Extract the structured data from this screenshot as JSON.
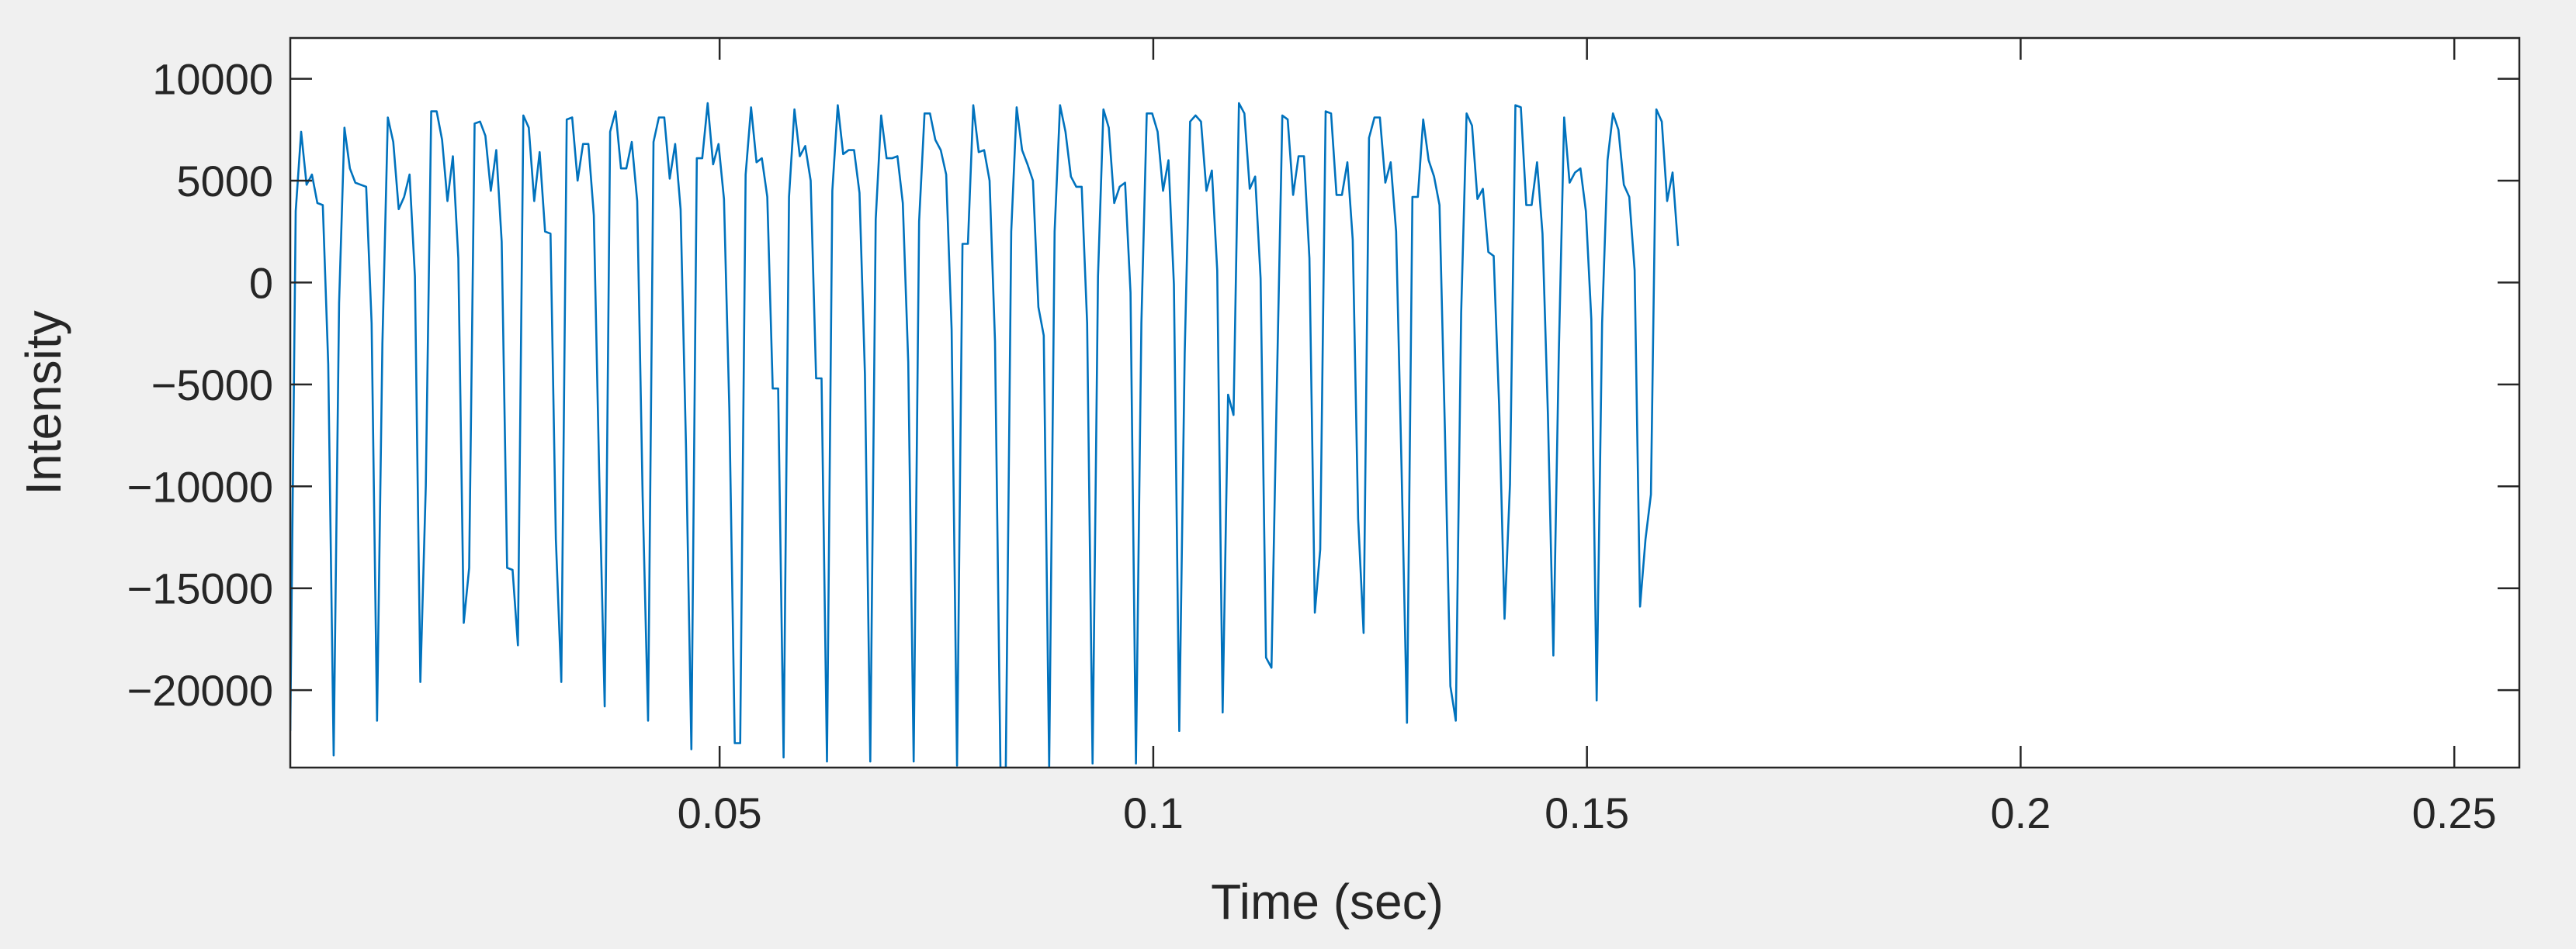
{
  "chart_data": {
    "type": "line",
    "title": "",
    "xlabel": "Time (sec)",
    "ylabel": "Intensity",
    "xlim": [
      0.0005,
      0.2575
    ],
    "ylim": [
      -23800,
      12000
    ],
    "xticks": [
      0.05,
      0.1,
      0.15,
      0.2,
      0.25
    ],
    "xtick_labels": [
      "0.05",
      "0.1",
      "0.15",
      "0.2",
      "0.25"
    ],
    "yticks": [
      -20000,
      -15000,
      -10000,
      -5000,
      0,
      5000,
      10000
    ],
    "ytick_labels": [
      "−20000",
      "−15000",
      "−10000",
      "−5000",
      "0",
      "5000",
      "10000"
    ],
    "grid": false,
    "line_color": "#0072bd",
    "sample_interval": 0.000625,
    "series": [
      {
        "x0": 0.0005,
        "dx": 0.000625,
        "values": [
          -22000,
          3500,
          7400,
          4800,
          5300,
          3900,
          3800,
          -4000,
          -23200,
          -1000,
          7600,
          5600,
          4900,
          4800,
          4700,
          -2000,
          -21500,
          -3000,
          8100,
          6900,
          3600,
          4200,
          5300,
          300,
          -19600,
          -10000,
          8400,
          8400,
          7000,
          4000,
          6200,
          1200,
          -16700,
          -14000,
          7800,
          7900,
          7200,
          4500,
          6500,
          2000,
          -14000,
          -14100,
          -17800,
          8200,
          7600,
          4000,
          6400,
          2500,
          2400,
          -12600,
          -19600,
          8000,
          8100,
          5000,
          6800,
          6800,
          3300,
          -9500,
          -20800,
          7400,
          8400,
          5600,
          5600,
          6900,
          4000,
          -10500,
          -21500,
          6900,
          8100,
          8100,
          5100,
          6800,
          3600,
          -8100,
          -22900,
          6100,
          6100,
          8800,
          5800,
          6800,
          4100,
          -6200,
          -22600,
          -22600,
          5300,
          8600,
          5900,
          6100,
          4200,
          -5200,
          -5200,
          -23300,
          4200,
          8500,
          6200,
          6700,
          5000,
          -4700,
          -4700,
          -23500,
          4500,
          8700,
          6300,
          6500,
          6500,
          4400,
          -4500,
          -23500,
          3100,
          8200,
          6100,
          6100,
          6200,
          3900,
          -3900,
          -23500,
          3000,
          8300,
          8300,
          7000,
          6500,
          5300,
          -2300,
          -23700,
          1900,
          1900,
          8700,
          6400,
          6500,
          5000,
          -2900,
          -23800,
          -23800,
          2500,
          8600,
          6500,
          5800,
          5000,
          -1200,
          -2600,
          -23800,
          2500,
          8700,
          7400,
          5200,
          4700,
          4700,
          -2000,
          -23600,
          300,
          8500,
          7600,
          3900,
          4700,
          4900,
          -500,
          -23600,
          -2000,
          8300,
          8300,
          7400,
          4500,
          6000,
          -100,
          -22000,
          -3500,
          7900,
          8200,
          7900,
          4500,
          5500,
          600,
          -21100,
          -5500,
          -6500,
          8800,
          8300,
          4600,
          5200,
          200,
          -18400,
          -18900,
          -5000,
          8200,
          8000,
          4300,
          6200,
          6200,
          1200,
          -16200,
          -13100,
          8400,
          8300,
          4300,
          4300,
          5900,
          2100,
          -11600,
          -17200,
          7100,
          8100,
          8100,
          4900,
          5900,
          2500,
          -9100,
          -21600,
          4200,
          4200,
          8000,
          6000,
          5200,
          3800,
          -7300,
          -19800,
          -21500,
          -1500,
          8300,
          7700,
          4100,
          4600,
          1500,
          1300,
          -6000,
          -16500,
          -9900,
          8700,
          8600,
          3800,
          3800,
          5900,
          2400,
          -6500,
          -18300,
          -3500,
          8100,
          4900,
          5400,
          5600,
          3500,
          -1800,
          -20500,
          -2000,
          6000,
          8300,
          7500,
          4800,
          4200,
          600,
          -15900,
          -12600,
          -10400,
          8500,
          7900,
          4000,
          5400,
          1800
        ]
      }
    ]
  }
}
